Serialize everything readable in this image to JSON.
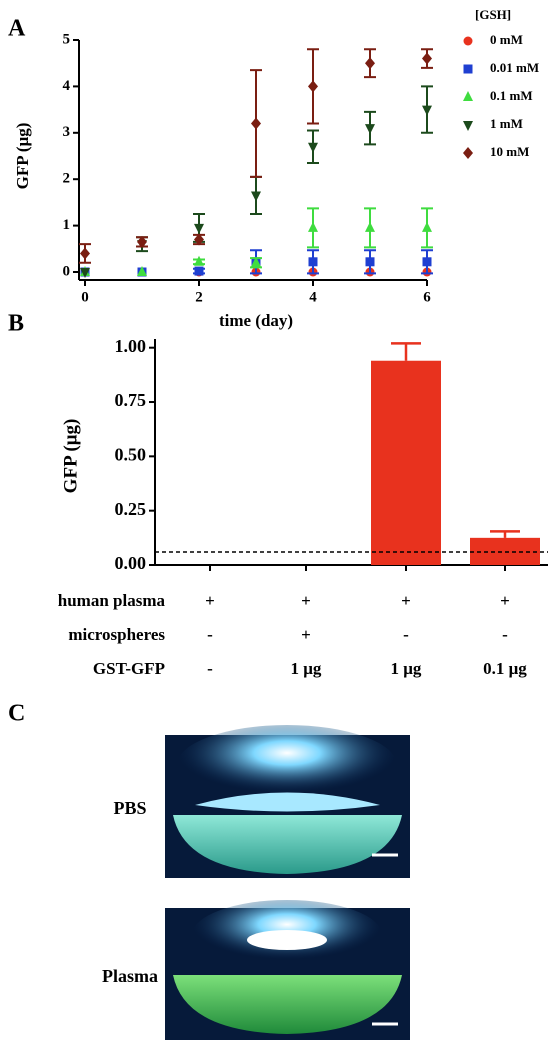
{
  "chart_data": [
    {
      "type": "scatter",
      "panel": "A",
      "x_label": "time (day)",
      "y_label": "GFP (μg)",
      "legend_title": "[GSH]",
      "x": [
        0,
        1,
        2,
        3,
        4,
        5,
        6
      ],
      "xlim": [
        0,
        6
      ],
      "xticks": [
        0,
        2,
        4,
        6
      ],
      "ylim": [
        0,
        5
      ],
      "yticks": [
        0,
        1,
        2,
        3,
        4,
        5
      ],
      "series": [
        {
          "name": "0 mM",
          "color": "#e8321e",
          "marker": "circle",
          "values": [
            0,
            0,
            0,
            0,
            0,
            0,
            0
          ]
        },
        {
          "name": "0.01 mM",
          "color": "#1f3fd1",
          "marker": "square",
          "values": [
            0,
            0,
            0.02,
            0.22,
            0.22,
            0.22,
            0.22
          ],
          "errors": [
            0,
            0,
            0.05,
            0.25,
            0.25,
            0.25,
            0.25
          ]
        },
        {
          "name": "0.1 mM",
          "color": "#3fdc3f",
          "marker": "triangle",
          "values": [
            0,
            0,
            0.22,
            0.2,
            0.95,
            0.95,
            0.95
          ],
          "errors": [
            0,
            0,
            0.05,
            0.1,
            0.42,
            0.42,
            0.42
          ]
        },
        {
          "name": "1 mM",
          "color": "#1c4a1c",
          "marker": "triangle-down",
          "values": [
            0,
            0.6,
            0.95,
            1.65,
            2.7,
            3.1,
            3.5
          ],
          "errors": [
            0,
            0.15,
            0.3,
            0.4,
            0.35,
            0.35,
            0.5
          ]
        },
        {
          "name": "10 mM",
          "color": "#7a1e12",
          "marker": "diamond",
          "values": [
            0.4,
            0.65,
            0.7,
            3.2,
            4.0,
            4.5,
            4.6
          ],
          "errors": [
            0.2,
            0.1,
            0.1,
            1.15,
            0.8,
            0.3,
            0.2
          ]
        }
      ]
    },
    {
      "type": "bar",
      "panel": "B",
      "y_label": "GFP (μg)",
      "color": "#e8321e",
      "values": [
        0,
        0,
        0.94,
        0.125
      ],
      "errors": [
        0,
        0,
        0.08,
        0.03
      ],
      "reference_line": 0.06,
      "ylim": [
        0,
        1.04
      ],
      "yticks": [
        {
          "value": 0,
          "label": "0.00"
        },
        {
          "value": 0.25,
          "label": "0.25"
        },
        {
          "value": 0.5,
          "label": "0.50"
        },
        {
          "value": 0.75,
          "label": "0.75"
        },
        {
          "value": 1,
          "label": "1.00"
        }
      ],
      "rows": [
        {
          "label": "human plasma",
          "cells": [
            "+",
            "+",
            "+",
            "+"
          ]
        },
        {
          "label": "microspheres",
          "cells": [
            "-",
            "+",
            "-",
            "-"
          ]
        },
        {
          "label": "GST-GFP",
          "cells": [
            "-",
            "1 μg",
            "1 μg",
            "0.1 μg"
          ]
        }
      ]
    },
    {
      "type": "image",
      "panel": "C",
      "images": [
        {
          "label": "PBS"
        },
        {
          "label": "Plasma"
        }
      ]
    }
  ]
}
